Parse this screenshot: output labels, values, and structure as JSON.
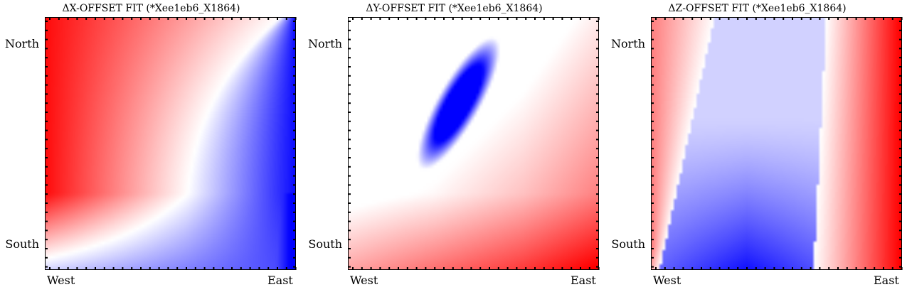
{
  "chart_data": [
    {
      "type": "heatmap",
      "title": "ΔX-OFFSET FIT (*Xee1eb6_X1864)",
      "x_tick_labels": [
        "West",
        "East"
      ],
      "y_tick_labels": [
        "North",
        "South"
      ],
      "colormap": "bwr",
      "colors": {
        "low": "#0000ff",
        "mid": "#ffffff",
        "high": "#ff0000"
      },
      "pattern": "red in upper-left, white diagonal band curving from lower-left to top-right, blue toward the right edge and lower-left corner"
    },
    {
      "type": "heatmap",
      "title": "ΔY-OFFSET FIT (*Xee1eb6_X1864)",
      "x_tick_labels": [
        "West",
        "East"
      ],
      "y_tick_labels": [
        "North",
        "South"
      ],
      "colormap": "bwr",
      "colors": {
        "low": "#0000ff",
        "mid": "#ffffff",
        "high": "#ff0000"
      },
      "pattern": "tilted blue ellipse in the upper-center, red toward the bottom-right corner and left edge"
    },
    {
      "type": "heatmap",
      "title": "ΔZ-OFFSET FIT (*Xee1eb6_X1864)",
      "x_tick_labels": [
        "West",
        "East"
      ],
      "y_tick_labels": [
        "North",
        "South"
      ],
      "colormap": "bwr",
      "colors": {
        "low": "#0000ff",
        "mid": "#ffffff",
        "high": "#ff0000"
      },
      "pattern": "red along the right edge and upper-left, light blue in the center, strong blue at the bottom center"
    }
  ]
}
